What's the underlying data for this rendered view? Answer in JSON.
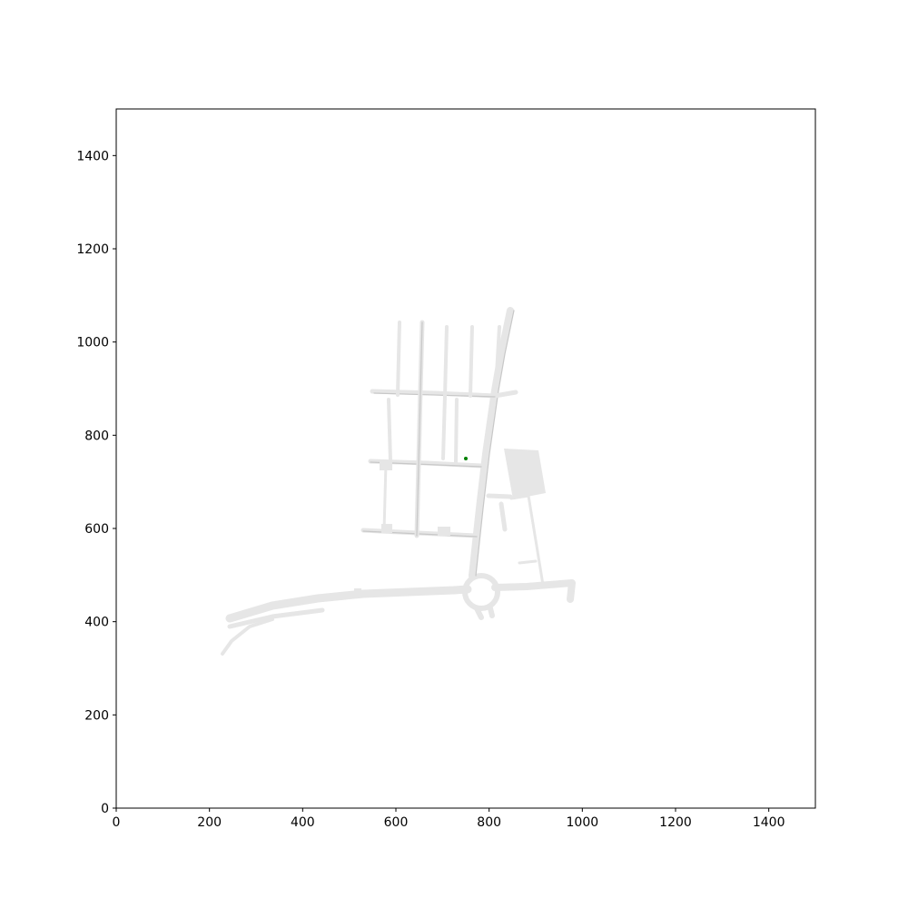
{
  "chart_data": {
    "type": "scatter",
    "title": "",
    "xlabel": "",
    "ylabel": "",
    "xlim": [
      0,
      1500
    ],
    "ylim": [
      0,
      1500
    ],
    "x_ticks": [
      0,
      200,
      400,
      600,
      800,
      1000,
      1200,
      1400
    ],
    "y_ticks": [
      0,
      200,
      400,
      600,
      800,
      1000,
      1200,
      1400
    ],
    "grid": false,
    "legend": "none",
    "background_map": "road network",
    "series": [
      {
        "color": "#008000",
        "points": [
          [
            750,
            750
          ]
        ]
      }
    ]
  }
}
